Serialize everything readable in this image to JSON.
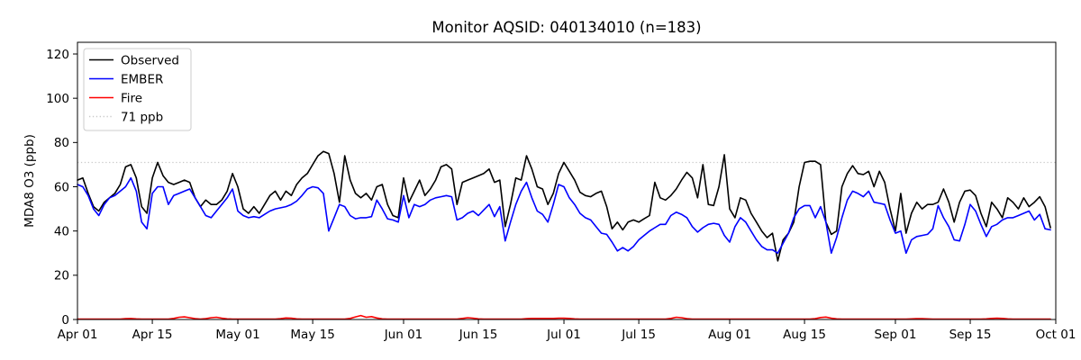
{
  "chart_data": {
    "type": "line",
    "title": "Monitor AQSID: 040134010 (n=183)",
    "ylabel": "MDA8 O3 (ppb)",
    "n_days": 183,
    "ylim": [
      0,
      125.3
    ],
    "yticks": [
      0,
      20,
      40,
      60,
      80,
      100,
      120
    ],
    "xticks": [
      {
        "day": 0,
        "label": "Apr 01"
      },
      {
        "day": 14,
        "label": "Apr 15"
      },
      {
        "day": 30,
        "label": "May 01"
      },
      {
        "day": 44,
        "label": "May 15"
      },
      {
        "day": 61,
        "label": "Jun 01"
      },
      {
        "day": 75,
        "label": "Jun 15"
      },
      {
        "day": 91,
        "label": "Jul 01"
      },
      {
        "day": 105,
        "label": "Jul 15"
      },
      {
        "day": 122,
        "label": "Aug 01"
      },
      {
        "day": 136,
        "label": "Aug 15"
      },
      {
        "day": 153,
        "label": "Sep 01"
      },
      {
        "day": 167,
        "label": "Sep 15"
      },
      {
        "day": 183,
        "label": "Oct 01"
      }
    ],
    "threshold": {
      "value": 71,
      "label": "71 ppb",
      "color": "#c9c9c9"
    },
    "legend_position": "upper left",
    "grid": false,
    "series": [
      {
        "name": "Observed",
        "color": "#000000",
        "values": [
          63,
          64,
          57,
          51,
          49,
          53,
          55,
          57,
          61,
          69,
          70,
          64,
          51,
          48,
          64,
          71,
          65,
          62,
          61,
          62,
          63,
          62,
          55,
          51,
          54,
          52,
          52,
          54,
          58,
          66,
          60,
          50,
          48,
          51,
          48,
          52,
          56,
          58,
          54,
          58,
          56,
          61,
          64,
          66,
          70,
          74,
          76,
          75,
          66,
          53,
          74,
          63,
          57,
          55,
          57,
          54,
          60,
          61,
          52,
          47,
          46,
          64,
          53,
          58,
          63,
          56,
          59,
          63,
          69,
          70,
          68,
          52,
          62,
          63,
          64,
          65,
          66,
          68,
          62,
          63,
          42,
          52,
          64,
          63,
          74,
          68,
          60,
          59,
          52,
          57,
          66,
          71,
          67,
          63,
          57.5,
          56,
          55.5,
          57,
          58,
          51,
          41,
          44,
          40.5,
          44,
          45,
          44,
          45.5,
          47,
          62,
          55,
          54,
          56,
          59,
          63,
          66.5,
          64,
          55,
          70,
          52,
          51.5,
          60,
          74.5,
          50,
          46,
          55,
          54,
          48,
          44,
          40,
          37,
          39,
          26.5,
          36,
          39,
          44,
          60,
          71,
          71.5,
          71.5,
          70,
          44,
          38.5,
          40,
          60,
          66,
          69.5,
          66,
          65.5,
          67,
          60,
          67,
          62,
          50,
          40,
          57,
          39,
          48,
          53,
          50,
          52,
          52,
          53,
          59,
          53,
          44,
          53,
          58,
          58.5,
          56,
          48,
          42,
          53,
          50,
          46,
          55,
          53,
          50,
          55,
          51,
          53,
          55.5,
          51,
          41.5
        ]
      },
      {
        "name": "EMBER",
        "color": "#0000ff",
        "values": [
          61,
          60,
          56,
          50,
          47,
          52,
          55,
          56,
          58,
          60,
          64,
          58,
          44,
          41,
          57,
          60,
          60,
          52,
          56,
          57,
          58,
          59,
          55,
          51,
          47,
          46,
          49,
          52,
          55,
          59,
          49,
          47,
          46,
          46.5,
          46,
          47.5,
          49,
          50,
          50.5,
          51,
          52,
          53.5,
          56,
          59,
          60,
          59.5,
          57,
          40,
          46,
          52,
          51,
          47,
          45.5,
          46,
          46,
          46.5,
          54,
          50,
          45.5,
          45,
          44,
          56,
          46,
          52,
          51,
          52,
          54,
          55,
          55.5,
          56,
          55.5,
          45,
          46,
          48,
          49,
          47,
          49.5,
          52,
          46.5,
          51,
          35.5,
          44,
          52,
          58,
          62,
          55,
          49,
          47.5,
          44,
          52,
          61,
          60,
          55,
          52,
          48,
          46,
          45,
          42,
          39,
          38.5,
          35,
          31,
          32.5,
          31,
          33,
          36,
          38,
          40,
          41.5,
          43,
          43,
          47,
          48.5,
          47.5,
          46,
          42,
          39.5,
          41.5,
          43,
          43.5,
          43,
          38,
          35,
          42,
          46,
          44,
          40,
          36,
          33,
          31.5,
          31.5,
          30,
          34.5,
          39,
          46,
          50,
          51.5,
          51.5,
          46,
          51,
          44,
          30,
          37,
          46,
          54,
          58,
          57,
          55.5,
          58,
          53,
          52.5,
          52,
          45,
          39,
          40,
          30,
          36,
          37.5,
          38,
          38.5,
          41,
          51.5,
          46,
          42,
          36,
          35.5,
          43,
          52,
          49,
          43,
          37.5,
          42,
          43,
          45,
          46,
          46,
          47,
          48,
          49,
          45,
          47.5,
          41,
          40.5
        ]
      },
      {
        "name": "Fire",
        "color": "#ff0000",
        "values": [
          0.2,
          0.2,
          0.2,
          0.2,
          0.2,
          0.2,
          0.2,
          0.2,
          0.2,
          0.4,
          0.45,
          0.3,
          0.2,
          0.2,
          0.2,
          0.2,
          0.2,
          0.2,
          0.5,
          1.0,
          1.2,
          0.8,
          0.4,
          0.2,
          0.4,
          0.8,
          1.0,
          0.6,
          0.3,
          0.2,
          0.2,
          0.2,
          0.2,
          0.2,
          0.2,
          0.2,
          0.2,
          0.2,
          0.4,
          0.7,
          0.6,
          0.3,
          0.2,
          0.2,
          0.2,
          0.2,
          0.2,
          0.2,
          0.2,
          0.2,
          0.2,
          0.5,
          1.2,
          1.8,
          1.0,
          1.3,
          0.7,
          0.3,
          0.2,
          0.2,
          0.2,
          0.2,
          0.2,
          0.2,
          0.2,
          0.2,
          0.2,
          0.2,
          0.2,
          0.2,
          0.2,
          0.2,
          0.5,
          0.8,
          0.6,
          0.3,
          0.2,
          0.2,
          0.2,
          0.2,
          0.2,
          0.2,
          0.2,
          0.2,
          0.4,
          0.5,
          0.5,
          0.5,
          0.5,
          0.5,
          0.6,
          0.6,
          0.5,
          0.3,
          0.2,
          0.2,
          0.2,
          0.2,
          0.2,
          0.2,
          0.2,
          0.2,
          0.2,
          0.2,
          0.2,
          0.2,
          0.2,
          0.2,
          0.2,
          0.2,
          0.2,
          0.5,
          1.0,
          0.8,
          0.4,
          0.2,
          0.2,
          0.2,
          0.2,
          0.2,
          0.2,
          0.2,
          0.2,
          0.2,
          0.2,
          0.2,
          0.2,
          0.2,
          0.2,
          0.2,
          0.2,
          0.2,
          0.2,
          0.2,
          0.2,
          0.2,
          0.2,
          0.2,
          0.4,
          0.9,
          1.1,
          0.6,
          0.3,
          0.2,
          0.2,
          0.2,
          0.2,
          0.2,
          0.2,
          0.2,
          0.2,
          0.2,
          0.2,
          0.2,
          0.2,
          0.2,
          0.3,
          0.4,
          0.4,
          0.3,
          0.2,
          0.2,
          0.2,
          0.2,
          0.2,
          0.2,
          0.2,
          0.2,
          0.2,
          0.2,
          0.3,
          0.5,
          0.6,
          0.5,
          0.3,
          0.2,
          0.2,
          0.2,
          0.2,
          0.2,
          0.2,
          0.2,
          0.2
        ]
      }
    ]
  }
}
